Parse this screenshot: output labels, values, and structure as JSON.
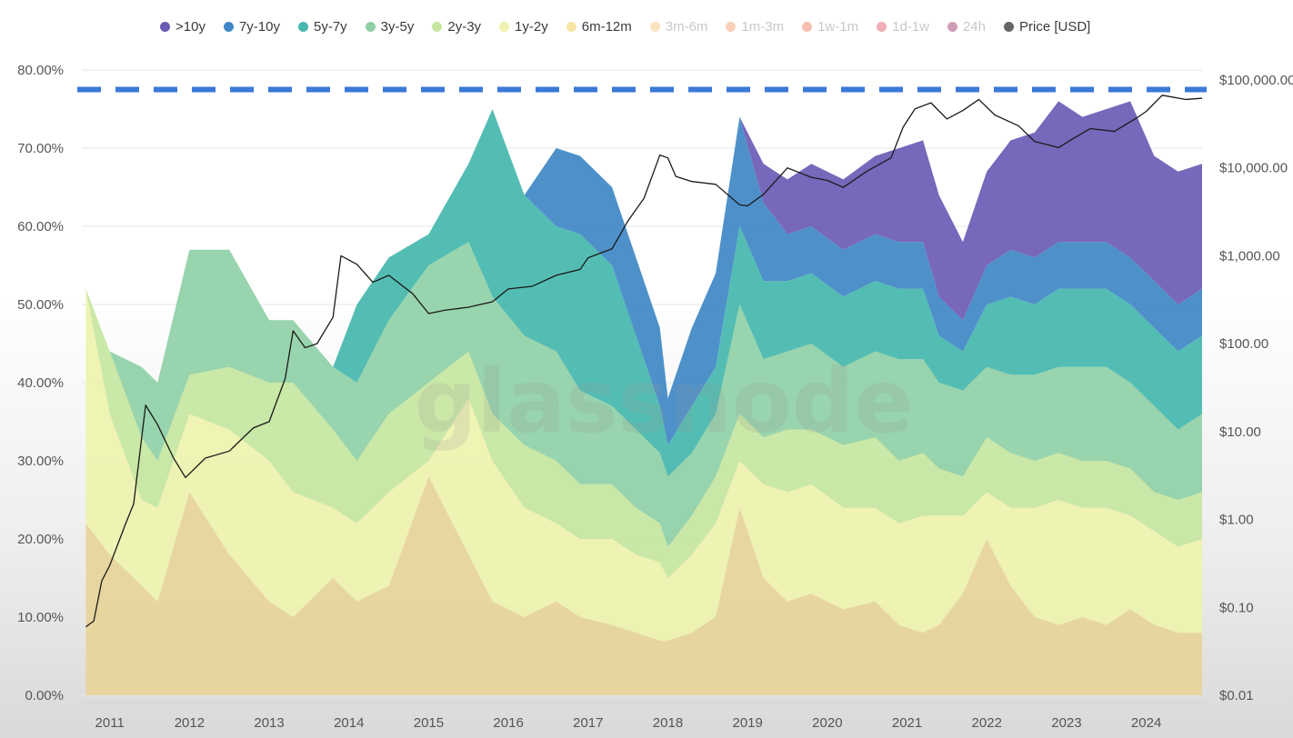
{
  "legend": [
    {
      "label": ">10y",
      "color": "#6b5bb5",
      "active": true
    },
    {
      "label": "7y-10y",
      "color": "#3f88c5",
      "active": true
    },
    {
      "label": "5y-7y",
      "color": "#45b7ad",
      "active": true
    },
    {
      "label": "3y-5y",
      "color": "#8fd0a6",
      "active": true
    },
    {
      "label": "2y-3y",
      "color": "#c6e6a0",
      "active": true
    },
    {
      "label": "1y-2y",
      "color": "#eef2ae",
      "active": true
    },
    {
      "label": "6m-12m",
      "color": "#f7e3a4",
      "active": true
    },
    {
      "label": "3m-6m",
      "color": "#f4b860",
      "active": false
    },
    {
      "label": "1m-3m",
      "color": "#f08a4b",
      "active": false
    },
    {
      "label": "1w-1m",
      "color": "#e8603c",
      "active": false
    },
    {
      "label": "1d-1w",
      "color": "#d93447",
      "active": false
    },
    {
      "label": "24h",
      "color": "#8a0a4e",
      "active": false
    },
    {
      "label": "Price [USD]",
      "color": "#666666",
      "active": true
    }
  ],
  "watermark": "glassnode",
  "chart_data": {
    "type": "area",
    "stacked": true,
    "grid": true,
    "legend_position": "top",
    "x_tick_labels": [
      "2011",
      "2012",
      "2013",
      "2014",
      "2015",
      "2016",
      "2017",
      "2018",
      "2019",
      "2020",
      "2021",
      "2022",
      "2023",
      "2024"
    ],
    "y_left_tick_labels": [
      "0.00%",
      "10.00%",
      "20.00%",
      "30.00%",
      "40.00%",
      "50.00%",
      "60.00%",
      "70.00%",
      "80.00%"
    ],
    "y_left_lim": [
      0,
      80
    ],
    "y_right_tick_labels": [
      "$0.01",
      "$0.10",
      "$1.00",
      "$10.00",
      "$100.00",
      "$1,000.00",
      "$10,000.00",
      "$100,000.00"
    ],
    "y_right_lim": [
      0.01,
      100000
    ],
    "y_right_scale": "log",
    "reference_line": {
      "y": 77.5,
      "style": "dashed",
      "color": "#3b78d8"
    },
    "x": [
      2010.7,
      2011.0,
      2011.4,
      2011.6,
      2012.0,
      2012.5,
      2013.0,
      2013.3,
      2013.8,
      2014.1,
      2014.5,
      2015.0,
      2015.5,
      2015.8,
      2016.2,
      2016.6,
      2016.9,
      2017.3,
      2017.6,
      2017.9,
      2018.0,
      2018.3,
      2018.6,
      2018.9,
      2019.2,
      2019.5,
      2019.8,
      2020.2,
      2020.6,
      2020.9,
      2021.2,
      2021.4,
      2021.7,
      2022.0,
      2022.3,
      2022.6,
      2022.9,
      2023.2,
      2023.5,
      2023.8,
      2024.1,
      2024.4,
      2024.7
    ],
    "series": [
      {
        "name": "6m-12m",
        "color": "#e7d49a",
        "values": [
          22,
          18,
          14,
          12,
          26,
          18,
          12,
          10,
          15,
          12,
          14,
          28,
          18,
          12,
          10,
          12,
          10,
          9,
          8,
          7,
          7,
          8,
          10,
          24,
          15,
          12,
          13,
          11,
          12,
          9,
          8,
          9,
          13,
          20,
          14,
          10,
          9,
          10,
          9,
          11,
          9,
          8,
          8
        ]
      },
      {
        "name": "1y-2y",
        "color": "#eef2ae",
        "values": [
          30,
          18,
          11,
          12,
          10,
          16,
          18,
          16,
          9,
          10,
          12,
          2,
          20,
          18,
          14,
          10,
          10,
          11,
          10,
          10,
          8,
          10,
          12,
          6,
          12,
          14,
          14,
          13,
          12,
          13,
          15,
          14,
          10,
          6,
          10,
          14,
          16,
          14,
          15,
          12,
          12,
          11,
          12
        ]
      },
      {
        "name": "2y-3y",
        "color": "#c6e6a0",
        "values": [
          0,
          8,
          8,
          6,
          5,
          8,
          10,
          14,
          10,
          8,
          10,
          10,
          6,
          6,
          8,
          8,
          7,
          7,
          6,
          5,
          4,
          5,
          6,
          6,
          6,
          8,
          7,
          8,
          9,
          8,
          8,
          6,
          5,
          7,
          7,
          6,
          6,
          6,
          6,
          6,
          5,
          6,
          6
        ]
      },
      {
        "name": "3y-5y",
        "color": "#8fd0a6",
        "values": [
          0,
          0,
          9,
          10,
          16,
          15,
          8,
          8,
          8,
          10,
          12,
          15,
          14,
          15,
          14,
          14,
          12,
          10,
          10,
          9,
          9,
          8,
          8,
          14,
          10,
          10,
          11,
          10,
          11,
          13,
          12,
          11,
          11,
          9,
          10,
          11,
          11,
          12,
          12,
          11,
          11,
          9,
          10
        ]
      },
      {
        "name": "5y-7y",
        "color": "#45b7ad",
        "values": [
          0,
          0,
          0,
          0,
          0,
          0,
          0,
          0,
          0,
          10,
          8,
          4,
          10,
          24,
          18,
          16,
          20,
          18,
          12,
          6,
          4,
          6,
          6,
          10,
          10,
          9,
          9,
          9,
          9,
          9,
          9,
          6,
          5,
          8,
          10,
          9,
          10,
          10,
          10,
          10,
          10,
          10,
          10
        ]
      },
      {
        "name": "7y-10y",
        "color": "#3f88c5",
        "values": [
          0,
          0,
          0,
          0,
          0,
          0,
          0,
          0,
          0,
          0,
          0,
          0,
          0,
          0,
          0,
          10,
          10,
          10,
          10,
          10,
          6,
          10,
          12,
          14,
          10,
          6,
          6,
          6,
          6,
          6,
          6,
          5,
          4,
          5,
          6,
          6,
          6,
          6,
          6,
          6,
          6,
          6,
          6
        ]
      },
      {
        "name": ">10y",
        "color": "#6b5bb5",
        "values": [
          0,
          0,
          0,
          0,
          0,
          0,
          0,
          0,
          0,
          0,
          0,
          0,
          0,
          0,
          0,
          0,
          0,
          0,
          0,
          0,
          0,
          0,
          0,
          0,
          5,
          7,
          8,
          9,
          10,
          12,
          13,
          13,
          10,
          12,
          14,
          16,
          18,
          16,
          17,
          20,
          16,
          17,
          16
        ]
      }
    ],
    "price_series": {
      "name": "Price [USD]",
      "x": [
        2010.7,
        2010.8,
        2010.9,
        2011.0,
        2011.2,
        2011.3,
        2011.45,
        2011.6,
        2011.8,
        2011.95,
        2012.2,
        2012.5,
        2012.8,
        2013.0,
        2013.2,
        2013.3,
        2013.45,
        2013.6,
        2013.8,
        2013.9,
        2014.1,
        2014.3,
        2014.5,
        2014.8,
        2015.0,
        2015.2,
        2015.5,
        2015.8,
        2016.0,
        2016.3,
        2016.6,
        2016.9,
        2017.0,
        2017.3,
        2017.5,
        2017.7,
        2017.9,
        2018.0,
        2018.1,
        2018.3,
        2018.6,
        2018.9,
        2019.0,
        2019.2,
        2019.5,
        2019.8,
        2020.0,
        2020.2,
        2020.5,
        2020.8,
        2020.95,
        2021.1,
        2021.3,
        2021.5,
        2021.7,
        2021.9,
        2022.1,
        2022.4,
        2022.6,
        2022.9,
        2023.1,
        2023.3,
        2023.6,
        2023.9,
        2024.0,
        2024.2,
        2024.5,
        2024.7
      ],
      "values": [
        0.06,
        0.07,
        0.2,
        0.3,
        0.9,
        1.5,
        20,
        12,
        5,
        3,
        5,
        6,
        11,
        13,
        40,
        140,
        90,
        100,
        200,
        1000,
        800,
        500,
        600,
        370,
        220,
        240,
        260,
        300,
        420,
        450,
        600,
        700,
        950,
        1200,
        2500,
        4500,
        14000,
        13000,
        8000,
        7000,
        6500,
        3800,
        3700,
        5000,
        10000,
        7800,
        7200,
        6000,
        9200,
        13000,
        29000,
        47000,
        55000,
        36000,
        45000,
        60000,
        40000,
        30000,
        20000,
        17000,
        22000,
        28000,
        26000,
        38000,
        44000,
        67000,
        60000,
        62000
      ]
    }
  }
}
